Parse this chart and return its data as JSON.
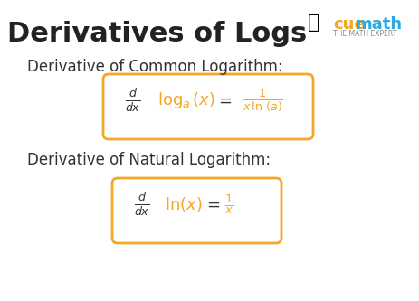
{
  "title": "Derivatives of Logs",
  "title_color": "#222222",
  "title_fontsize": 22,
  "bg_color": "#ffffff",
  "subtitle1": "Derivative of Common Logarithm:",
  "subtitle2": "Derivative of Natural Logarithm:",
  "subtitle_color": "#333333",
  "subtitle_fontsize": 12,
  "formula1_black": "\\frac{d}{dx}",
  "formula1_orange": "\\log_{a}(x)",
  "formula1_eq": "=",
  "formula1_rhs_black": "\\frac{1}{x\\,\\ln(a)}",
  "formula2_black": "\\frac{d}{dx}",
  "formula2_orange": "\\ln(x)",
  "formula2_eq": "=",
  "formula2_rhs_black": "\\frac{1}{x}",
  "orange_color": "#F5A623",
  "black_color": "#333333",
  "box_edge_color": "#F5A623",
  "cuemath_color": "#29ABE2",
  "cuemath_text": "cuemath",
  "expert_text": "THE MATH EXPERT"
}
